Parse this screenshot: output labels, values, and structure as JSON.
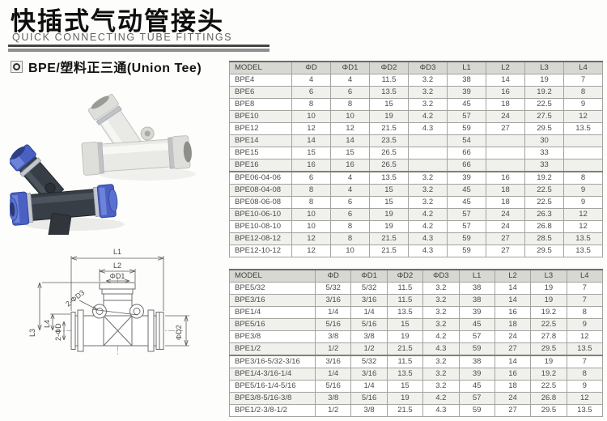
{
  "page": {
    "title_zh": "快插式气动管接头",
    "subtitle_en": "QUICK CONNECTING TUBE FITTINGS"
  },
  "section": {
    "title": "BPE/塑料正三通(Union Tee)"
  },
  "colors": {
    "accent_blue": "#4a60c2",
    "dark_body": "#383e46",
    "white_body": "#e9e9e6",
    "table_header_bg": "#d8d8d3",
    "table_border": "#a3a3a0"
  },
  "photo": {
    "items": [
      "dark union tee with blue release rings",
      "white union tee"
    ]
  },
  "diagram": {
    "labels": {
      "l1": "L1",
      "l2": "L2",
      "d1": "ΦD1",
      "d3": "2-ΦD3",
      "l3": "L3",
      "l4": "L4",
      "d": "2-ΦD",
      "d2": "ΦD2"
    }
  },
  "tables": [
    {
      "name": "metric",
      "columns": [
        "MODEL",
        "ΦD",
        "ΦD1",
        "ΦD2",
        "ΦD3",
        "L1",
        "L2",
        "L3",
        "L4"
      ],
      "group_starts": [
        8
      ],
      "rows": [
        [
          "BPE4",
          "4",
          "4",
          "11.5",
          "3.2",
          "38",
          "14",
          "19",
          "7"
        ],
        [
          "BPE6",
          "6",
          "6",
          "13.5",
          "3.2",
          "39",
          "16",
          "19.2",
          "8"
        ],
        [
          "BPE8",
          "8",
          "8",
          "15",
          "3.2",
          "45",
          "18",
          "22.5",
          "9"
        ],
        [
          "BPE10",
          "10",
          "10",
          "19",
          "4.2",
          "57",
          "24",
          "27.5",
          "12"
        ],
        [
          "BPE12",
          "12",
          "12",
          "21.5",
          "4.3",
          "59",
          "27",
          "29.5",
          "13.5"
        ],
        [
          "BPE14",
          "14",
          "14",
          "23.5",
          "",
          "54",
          "",
          "30",
          ""
        ],
        [
          "BPE15",
          "15",
          "15",
          "26.5",
          "",
          "66",
          "",
          "33",
          ""
        ],
        [
          "BPE16",
          "16",
          "16",
          "26.5",
          "",
          "66",
          "",
          "33",
          ""
        ],
        [
          "BPE06-04-06",
          "6",
          "4",
          "13.5",
          "3.2",
          "39",
          "16",
          "19.2",
          "8"
        ],
        [
          "BPE08-04-08",
          "8",
          "4",
          "15",
          "3.2",
          "45",
          "18",
          "22.5",
          "9"
        ],
        [
          "BPE08-06-08",
          "8",
          "6",
          "15",
          "3.2",
          "45",
          "18",
          "22.5",
          "9"
        ],
        [
          "BPE10-06-10",
          "10",
          "6",
          "19",
          "4.2",
          "57",
          "24",
          "26.3",
          "12"
        ],
        [
          "BPE10-08-10",
          "10",
          "8",
          "19",
          "4.2",
          "57",
          "24",
          "26.8",
          "12"
        ],
        [
          "BPE12-08-12",
          "12",
          "8",
          "21.5",
          "4.3",
          "59",
          "27",
          "28.5",
          "13.5"
        ],
        [
          "BPE12-10-12",
          "12",
          "10",
          "21.5",
          "4.3",
          "59",
          "27",
          "29.5",
          "13.5"
        ]
      ]
    },
    {
      "name": "inch",
      "columns": [
        "MODEL",
        "ΦD",
        "ΦD1",
        "ΦD2",
        "ΦD3",
        "L1",
        "L2",
        "L3",
        "L4"
      ],
      "group_starts": [
        6
      ],
      "rows": [
        [
          "BPE5/32",
          "5/32",
          "5/32",
          "11.5",
          "3.2",
          "38",
          "14",
          "19",
          "7"
        ],
        [
          "BPE3/16",
          "3/16",
          "3/16",
          "11.5",
          "3.2",
          "38",
          "14",
          "19",
          "7"
        ],
        [
          "BPE1/4",
          "1/4",
          "1/4",
          "13.5",
          "3.2",
          "39",
          "16",
          "19.2",
          "8"
        ],
        [
          "BPE5/16",
          "5/16",
          "5/16",
          "15",
          "3.2",
          "45",
          "18",
          "22.5",
          "9"
        ],
        [
          "BPE3/8",
          "3/8",
          "3/8",
          "19",
          "4.2",
          "57",
          "24",
          "27.8",
          "12"
        ],
        [
          "BPE1/2",
          "1/2",
          "1/2",
          "21.5",
          "4.3",
          "59",
          "27",
          "29.5",
          "13.5"
        ],
        [
          "BPE3/16-5/32-3/16",
          "3/16",
          "5/32",
          "11.5",
          "3.2",
          "38",
          "14",
          "19",
          "7"
        ],
        [
          "BPE1/4-3/16-1/4",
          "1/4",
          "3/16",
          "13.5",
          "3.2",
          "39",
          "16",
          "19.2",
          "8"
        ],
        [
          "BPE5/16-1/4-5/16",
          "5/16",
          "1/4",
          "15",
          "3.2",
          "45",
          "18",
          "22.5",
          "9"
        ],
        [
          "BPE3/8-5/16-3/8",
          "3/8",
          "5/16",
          "19",
          "4.2",
          "57",
          "24",
          "26.8",
          "12"
        ],
        [
          "BPE1/2-3/8-1/2",
          "1/2",
          "3/8",
          "21.5",
          "4.3",
          "59",
          "27",
          "29.5",
          "13.5"
        ]
      ]
    }
  ]
}
